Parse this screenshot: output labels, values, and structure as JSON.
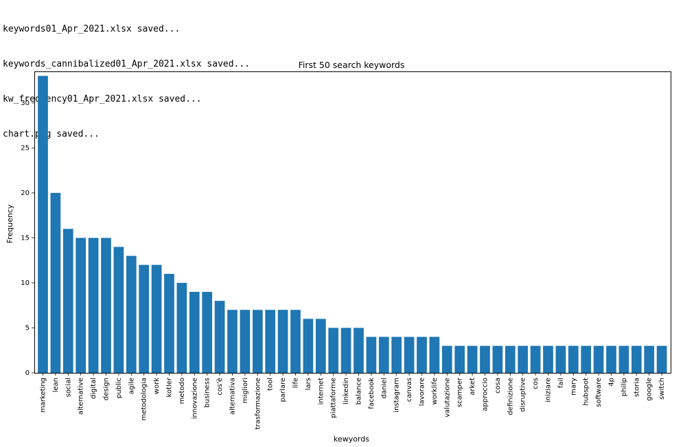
{
  "console": {
    "lines": [
      "keywords01_Apr_2021.xlsx saved...",
      "keywords_cannibalized01_Apr_2021.xlsx saved...",
      "kw_frequency01_Apr_2021.xlsx saved...",
      "chart.png saved..."
    ]
  },
  "chart_data": {
    "type": "bar",
    "title": "First 50 search keywords",
    "xlabel": "kewyords",
    "ylabel": "Frequency",
    "ylim": [
      0,
      33.5
    ],
    "yticks": [
      0,
      5,
      10,
      15,
      20,
      25,
      30
    ],
    "grid": false,
    "bar_color": "#1f77b4",
    "categories": [
      "marketing",
      "lean",
      "social",
      "alternative",
      "digital",
      "design",
      "public",
      "agile",
      "metodologia",
      "work",
      "kotler",
      "metodo",
      "innovazione",
      "business",
      "cos'è",
      "alternativa",
      "migliori",
      "trasformazione",
      "tool",
      "parlare",
      "life",
      "lars",
      "internet",
      "piattaforme",
      "linkedin",
      "balance",
      "facebook",
      "daniel",
      "instagram",
      "canvas",
      "lavorare",
      "worklife",
      "valutazione",
      "scamper",
      "arket",
      "approccio",
      "cosa",
      "definizione",
      "disruptive",
      "cos",
      "iniziare",
      "fail",
      "mary",
      "hubspot",
      "software",
      "4p",
      "philip",
      "storia",
      "google",
      "switch"
    ],
    "values": [
      33,
      20,
      16,
      15,
      15,
      15,
      14,
      13,
      12,
      12,
      11,
      10,
      9,
      9,
      8,
      7,
      7,
      7,
      7,
      7,
      7,
      6,
      6,
      5,
      5,
      5,
      4,
      4,
      4,
      4,
      4,
      4,
      3,
      3,
      3,
      3,
      3,
      3,
      3,
      3,
      3,
      3,
      3,
      3,
      3,
      3,
      3,
      3,
      3,
      3
    ]
  }
}
